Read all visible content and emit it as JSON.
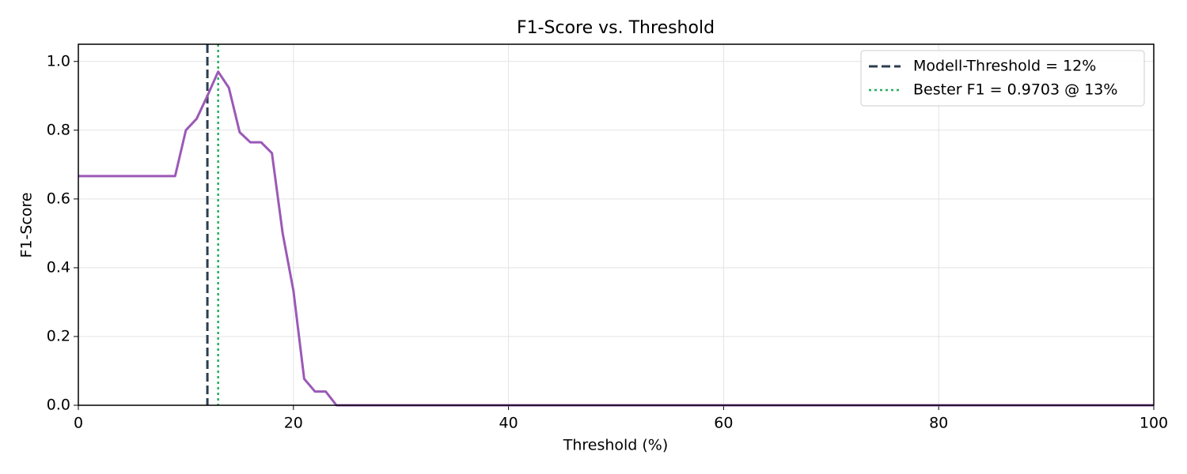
{
  "chart_data": {
    "type": "line",
    "title": "F1-Score vs. Threshold",
    "x_label": "Threshold (%)",
    "y_label": "F1-Score",
    "x": [
      0,
      1,
      2,
      3,
      4,
      5,
      6,
      7,
      8,
      9,
      10,
      11,
      12,
      13,
      14,
      15,
      16,
      17,
      18,
      19,
      20,
      21,
      22,
      23,
      24,
      25,
      26,
      27,
      28,
      29,
      30,
      31,
      32,
      33,
      34,
      35,
      36,
      37,
      38,
      39,
      40,
      41,
      42,
      43,
      44,
      45,
      46,
      47,
      48,
      49,
      50,
      51,
      52,
      53,
      54,
      55,
      56,
      57,
      58,
      59,
      60,
      61,
      62,
      63,
      64,
      65,
      66,
      67,
      68,
      69,
      70,
      71,
      72,
      73,
      74,
      75,
      76,
      77,
      78,
      79,
      80,
      81,
      82,
      83,
      84,
      85,
      86,
      87,
      88,
      89,
      90,
      91,
      92,
      93,
      94,
      95,
      96,
      97,
      98,
      99,
      100
    ],
    "series": [
      {
        "name": "F1-Score",
        "color": "#9b59b6",
        "values": [
          0.6667,
          0.6667,
          0.6667,
          0.6667,
          0.6667,
          0.6667,
          0.6667,
          0.6667,
          0.6667,
          0.6667,
          0.8,
          0.8333,
          0.9,
          0.9703,
          0.9231,
          0.7941,
          0.7647,
          0.7647,
          0.7333,
          0.5,
          0.3333,
          0.0769,
          0.04,
          0.04,
          0,
          0,
          0,
          0,
          0,
          0,
          0,
          0,
          0,
          0,
          0,
          0,
          0,
          0,
          0,
          0,
          0,
          0,
          0,
          0,
          0,
          0,
          0,
          0,
          0,
          0,
          0,
          0,
          0,
          0,
          0,
          0,
          0,
          0,
          0,
          0,
          0,
          0,
          0,
          0,
          0,
          0,
          0,
          0,
          0,
          0,
          0,
          0,
          0,
          0,
          0,
          0,
          0,
          0,
          0,
          0,
          0,
          0,
          0,
          0,
          0,
          0,
          0,
          0,
          0,
          0,
          0,
          0,
          0,
          0,
          0,
          0,
          0,
          0,
          0,
          0,
          0
        ]
      }
    ],
    "vlines": [
      {
        "x": 12,
        "label": "Modell-Threshold = 12%",
        "color": "#2c3e50",
        "style": "dashed"
      },
      {
        "x": 13,
        "label": "Bester F1 = 0.9703 @ 13%",
        "color": "#27ae60",
        "style": "dotted"
      }
    ],
    "xlim": [
      0,
      100
    ],
    "xticks": [
      0,
      20,
      40,
      60,
      80,
      100
    ],
    "ylim": [
      0,
      1.05
    ],
    "yticks": [
      {
        "value": 0,
        "label": "0.0"
      },
      0.2,
      0.4,
      0.6,
      0.8,
      {
        "value": 1,
        "label": "1.0"
      }
    ],
    "grid": true,
    "legend": "upper right"
  }
}
